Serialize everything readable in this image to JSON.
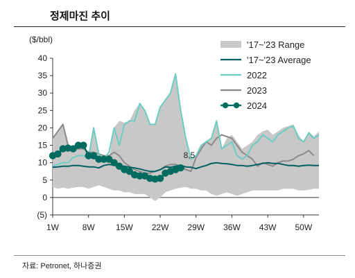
{
  "title": "정제마진 추이",
  "source": "자료: Petronet, 하나증권",
  "chart_data": {
    "type": "line",
    "ylabel": "($/bbl)",
    "ylim": [
      -5,
      40
    ],
    "yticks": [
      40,
      35,
      30,
      25,
      20,
      15,
      10,
      5,
      0,
      -5
    ],
    "ytick_labels": [
      "40",
      "35",
      "30",
      "25",
      "20",
      "15",
      "10",
      "5",
      "0",
      "(5)"
    ],
    "xlim": [
      1,
      53
    ],
    "xticks": [
      1,
      8,
      15,
      22,
      29,
      36,
      43,
      50
    ],
    "xtick_labels": [
      "1W",
      "8W",
      "15W",
      "22W",
      "29W",
      "36W",
      "43W",
      "50W"
    ],
    "legend_position": "top-right",
    "annotation": {
      "text": "8,5",
      "x": 26,
      "y": 8.5
    },
    "colors": {
      "range": "#c8c8c8",
      "avg": "#006060",
      "y2022": "#6ccdc2",
      "y2023": "#8a8a8a",
      "y2024": "#006b5e"
    },
    "range_band": {
      "name": "'17~'23 Range",
      "x": [
        1,
        2,
        3,
        4,
        5,
        6,
        7,
        8,
        9,
        10,
        11,
        12,
        13,
        14,
        15,
        16,
        17,
        18,
        19,
        20,
        21,
        22,
        23,
        24,
        25,
        26,
        27,
        28,
        29,
        30,
        31,
        32,
        33,
        34,
        35,
        36,
        37,
        38,
        39,
        40,
        41,
        42,
        43,
        44,
        45,
        46,
        47,
        48,
        49,
        50,
        51,
        52,
        53
      ],
      "low": [
        3,
        2.5,
        2.8,
        2.5,
        2.8,
        3,
        3,
        2.5,
        3,
        3.5,
        3,
        2.5,
        2,
        2,
        1.5,
        1.5,
        1,
        1,
        1,
        0,
        -1,
        0,
        1.5,
        2,
        2.5,
        2.8,
        3,
        2.5,
        2.5,
        2,
        2,
        1,
        0.5,
        1,
        1.5,
        1,
        0.5,
        1,
        1.5,
        2,
        2,
        2,
        2,
        2,
        2,
        2.5,
        2.5,
        2.5,
        2,
        2,
        2.2,
        2.5,
        2.5
      ],
      "high": [
        17,
        19,
        21,
        15,
        14,
        14,
        14,
        13,
        20,
        13,
        11,
        11,
        20,
        22,
        21.5,
        22,
        25,
        27,
        25,
        21,
        21,
        26,
        28,
        30,
        35.5,
        25,
        17,
        11,
        12,
        15,
        16,
        17,
        22,
        14,
        17,
        18,
        16,
        14,
        15,
        16,
        18,
        19,
        19.5,
        18,
        19,
        20,
        20.5,
        21,
        18,
        16,
        19,
        17.5,
        19
      ]
    },
    "series": [
      {
        "name": "'17~'23 Average",
        "x": [
          1,
          2,
          3,
          4,
          5,
          6,
          7,
          8,
          9,
          10,
          11,
          12,
          13,
          14,
          15,
          16,
          17,
          18,
          19,
          20,
          21,
          22,
          23,
          24,
          25,
          26,
          27,
          28,
          29,
          30,
          31,
          32,
          33,
          34,
          35,
          36,
          37,
          38,
          39,
          40,
          41,
          42,
          43,
          44,
          45,
          46,
          47,
          48,
          49,
          50,
          51,
          52,
          53
        ],
        "y": [
          8.7,
          8.8,
          9,
          9,
          9.2,
          9.2,
          9,
          8.8,
          8.8,
          8.5,
          9.2,
          9.5,
          9.3,
          9,
          9,
          8.7,
          8.5,
          8.2,
          7.8,
          7.5,
          7.5,
          8,
          8.8,
          8.7,
          9,
          9.2,
          8.8,
          8.7,
          8.3,
          8.8,
          9.2,
          9.8,
          10,
          9.8,
          9.7,
          9.5,
          9.2,
          9.2,
          9,
          9.2,
          9.5,
          9.8,
          10,
          9.8,
          9.8,
          9.5,
          9.2,
          9.2,
          9,
          9.2,
          9.3,
          9.2,
          9.2
        ]
      },
      {
        "name": "2022",
        "x": [
          1,
          2,
          3,
          4,
          5,
          6,
          7,
          8,
          9,
          10,
          11,
          12,
          13,
          14,
          15,
          16,
          17,
          18,
          19,
          20,
          21,
          22,
          23,
          24,
          25,
          26,
          27,
          28,
          29,
          30,
          31,
          32,
          33,
          34,
          35,
          36,
          37,
          38,
          39,
          40,
          41,
          42,
          43,
          44,
          45,
          46,
          47,
          48,
          49,
          50,
          51,
          52,
          53
        ],
        "y": [
          9,
          9.5,
          10,
          10,
          11.5,
          12,
          12,
          11.5,
          20,
          12.5,
          11,
          13,
          20,
          15,
          21,
          22,
          22,
          27,
          25,
          21,
          21,
          26,
          28,
          30,
          35.5,
          25,
          17,
          11,
          12,
          15,
          16,
          17,
          22,
          14,
          15,
          16,
          12,
          11,
          12,
          15,
          16,
          18,
          17,
          16,
          18,
          19,
          20,
          20.5,
          17,
          16,
          18.5,
          17,
          18
        ]
      },
      {
        "name": "2023",
        "x": [
          1,
          2,
          3,
          4,
          5,
          6,
          7,
          8,
          9,
          10,
          11,
          12,
          13,
          14,
          15,
          16,
          17,
          18,
          19,
          20,
          21,
          22,
          23,
          24,
          25,
          26,
          27,
          28,
          29,
          30,
          31,
          32,
          33,
          34,
          35,
          36,
          37,
          38,
          39,
          40,
          41,
          42,
          43,
          44,
          45,
          46,
          47,
          48,
          49,
          50,
          51,
          52
        ],
        "y": [
          17,
          19,
          21,
          15,
          14,
          14,
          14,
          13,
          13,
          12.5,
          12,
          12,
          13,
          12,
          10,
          9,
          8,
          7.5,
          7,
          7,
          7.5,
          8,
          9,
          9.5,
          9.5,
          9,
          8,
          7.5,
          11.5,
          14,
          16,
          15,
          17,
          18,
          17.5,
          17,
          15,
          13,
          12,
          11,
          9,
          10,
          9.5,
          9,
          10,
          10.5,
          10.5,
          11,
          12,
          12.5,
          13.5,
          12
        ]
      },
      {
        "name": "2024",
        "x": [
          1,
          2,
          3,
          4,
          5,
          6,
          7,
          8,
          9,
          10,
          11,
          12,
          13,
          14,
          15,
          16,
          17,
          18,
          19,
          20,
          21,
          22,
          23,
          24,
          25,
          26
        ],
        "y": [
          12,
          12.5,
          14,
          14.2,
          14,
          15,
          15,
          12,
          12,
          11,
          11,
          11,
          10,
          9,
          8,
          7.5,
          6.5,
          6.2,
          6.2,
          5.5,
          5.3,
          5.5,
          7,
          7.5,
          8,
          8.5
        ]
      }
    ]
  }
}
